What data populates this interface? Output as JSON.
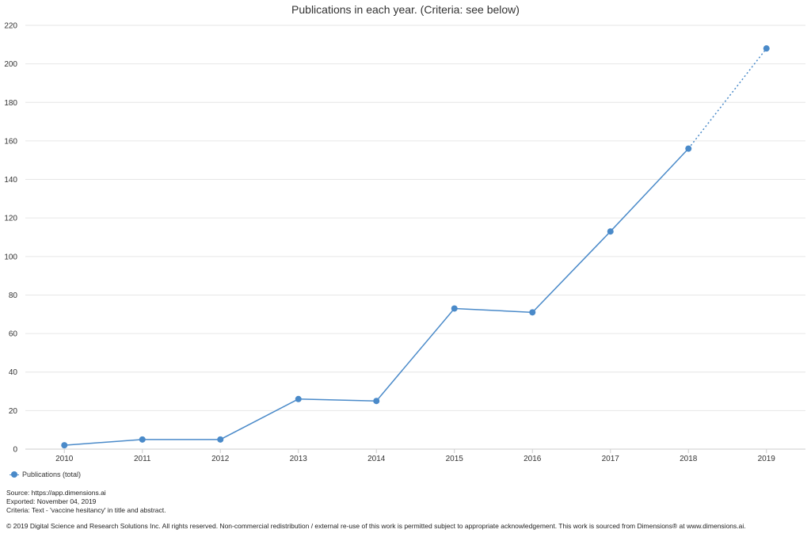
{
  "colors": {
    "series": "#4a8ac9",
    "grid": "#e6e6e6",
    "axis": "#cccccc",
    "text": "#333333"
  },
  "chart_data": {
    "type": "line",
    "title": "Publications in each year. (Criteria: see below)",
    "xlabel": "",
    "ylabel": "",
    "categories": [
      "2010",
      "2011",
      "2012",
      "2013",
      "2014",
      "2015",
      "2016",
      "2017",
      "2018",
      "2019"
    ],
    "y_ticks": [
      "0",
      "20",
      "40",
      "60",
      "80",
      "100",
      "120",
      "140",
      "160",
      "180",
      "200",
      "220"
    ],
    "ylim": [
      0,
      220
    ],
    "grid": true,
    "legend": "bottom-left",
    "series": [
      {
        "name": "Publications (total)",
        "values": [
          2,
          5,
          5,
          26,
          25,
          73,
          71,
          113,
          156,
          208
        ],
        "dotted_last_segment": true
      }
    ]
  },
  "footer": {
    "source": "Source: https://app.dimensions.ai",
    "exported": "Exported: November 04, 2019",
    "criteria": "Criteria: Text - 'vaccine hesitancy' in title and abstract.",
    "copyright": "© 2019 Digital Science and Research Solutions Inc. All rights reserved. Non-commercial redistribution / external re-use of this work is permitted subject to appropriate acknowledgement. This work is sourced from Dimensions® at www.dimensions.ai."
  }
}
